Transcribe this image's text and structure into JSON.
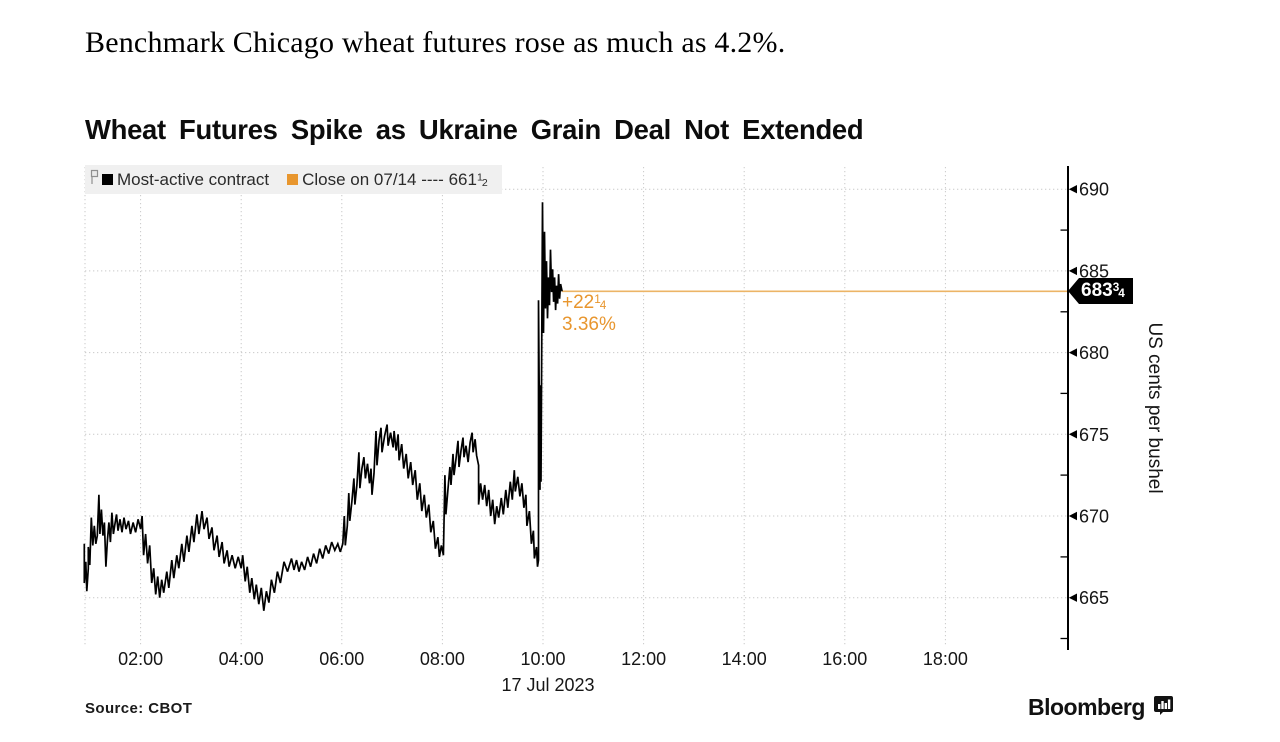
{
  "headline": "Benchmark Chicago wheat futures rose as much as 4.2%.",
  "chart": {
    "title": "Wheat Futures Spike as Ukraine Grain Deal Not Extended",
    "legend": {
      "series1": "Most-active contract",
      "close_prefix": "Close on 07/14 ----",
      "close_whole": "661",
      "close_num": "1",
      "close_den": "2"
    },
    "y_axis_title": "US cents per bushel",
    "source": "Source: CBOT",
    "brand": "Bloomberg"
  },
  "price_badge": {
    "whole": "683",
    "num": "3",
    "den": "4"
  },
  "annotation": {
    "change_whole": "+22",
    "change_num": "1",
    "change_den": "4",
    "pct": "3.36%"
  },
  "colors": {
    "accent": "#e8962e",
    "last_price_line": "#ecb466",
    "series": "#000000",
    "grid": "#c9c9c9",
    "legend_bg": "#f0f0f0",
    "badge_bg": "#000000",
    "badge_text": "#ffffff"
  },
  "chart_data": {
    "type": "line",
    "title": "Wheat Futures Spike as Ukraine Grain Deal Not Extended",
    "ylabel": "US cents per bushel",
    "x_date_label": "17 Jul 2023",
    "x_unit": "hour of day",
    "xlim": [
      0.8,
      20.4
    ],
    "ylim": [
      661.5,
      691.5
    ],
    "grid": true,
    "legend_position": "top-left",
    "y_ticks": [
      665,
      670,
      675,
      680,
      685,
      690
    ],
    "y_minor_ticks": [
      662.5,
      667.5,
      672.5,
      677.5,
      682.5,
      687.5
    ],
    "x_ticks": [
      {
        "t": 2,
        "label": "02:00"
      },
      {
        "t": 4,
        "label": "04:00"
      },
      {
        "t": 6,
        "label": "06:00"
      },
      {
        "t": 8,
        "label": "08:00"
      },
      {
        "t": 10,
        "label": "10:00"
      },
      {
        "t": 12,
        "label": "12:00"
      },
      {
        "t": 14,
        "label": "14:00"
      },
      {
        "t": 16,
        "label": "16:00"
      },
      {
        "t": 18,
        "label": "18:00"
      }
    ],
    "prev_close": 661.5,
    "last_price": 683.75,
    "change": "+22 1/4",
    "change_pct": "3.36%",
    "intraday_high": 689.25,
    "intraday_low": 664.25,
    "series": [
      {
        "name": "Most-active contract",
        "color": "#000000",
        "points": [
          [
            0.88,
            668.3
          ],
          [
            0.88,
            665.9
          ],
          [
            0.91,
            667.2
          ],
          [
            0.93,
            665.4
          ],
          [
            0.96,
            666.8
          ],
          [
            0.96,
            668.1
          ],
          [
            0.99,
            667.0
          ],
          [
            1.02,
            669.9
          ],
          [
            1.05,
            668.2
          ],
          [
            1.08,
            669.4
          ],
          [
            1.11,
            668.3
          ],
          [
            1.14,
            668.8
          ],
          [
            1.17,
            671.3
          ],
          [
            1.19,
            668.9
          ],
          [
            1.22,
            670.4
          ],
          [
            1.25,
            668.8
          ],
          [
            1.28,
            669.6
          ],
          [
            1.31,
            666.9
          ],
          [
            1.34,
            668.5
          ],
          [
            1.37,
            669.6
          ],
          [
            1.4,
            668.4
          ],
          [
            1.43,
            670.2
          ],
          [
            1.46,
            668.9
          ],
          [
            1.49,
            669.5
          ],
          [
            1.52,
            670.1
          ],
          [
            1.55,
            669.1
          ],
          [
            1.59,
            669.8
          ],
          [
            1.63,
            669.0
          ],
          [
            1.67,
            669.9
          ],
          [
            1.71,
            669.2
          ],
          [
            1.76,
            669.7
          ],
          [
            1.8,
            668.9
          ],
          [
            1.85,
            669.6
          ],
          [
            1.9,
            669.0
          ],
          [
            1.95,
            669.8
          ],
          [
            2.0,
            669.2
          ],
          [
            2.03,
            670.0
          ],
          [
            2.06,
            667.6
          ],
          [
            2.1,
            668.9
          ],
          [
            2.14,
            667.1
          ],
          [
            2.18,
            668.2
          ],
          [
            2.22,
            665.9
          ],
          [
            2.26,
            666.8
          ],
          [
            2.3,
            665.2
          ],
          [
            2.34,
            666.3
          ],
          [
            2.38,
            665.0
          ],
          [
            2.42,
            666.1
          ],
          [
            2.46,
            665.3
          ],
          [
            2.52,
            666.6
          ],
          [
            2.56,
            665.6
          ],
          [
            2.62,
            667.3
          ],
          [
            2.66,
            666.2
          ],
          [
            2.72,
            667.6
          ],
          [
            2.76,
            666.8
          ],
          [
            2.82,
            668.3
          ],
          [
            2.86,
            667.2
          ],
          [
            2.92,
            668.8
          ],
          [
            2.96,
            667.8
          ],
          [
            3.02,
            669.4
          ],
          [
            3.06,
            668.4
          ],
          [
            3.12,
            670.1
          ],
          [
            3.16,
            668.9
          ],
          [
            3.22,
            670.3
          ],
          [
            3.26,
            669.2
          ],
          [
            3.32,
            669.9
          ],
          [
            3.36,
            668.6
          ],
          [
            3.42,
            669.3
          ],
          [
            3.46,
            667.9
          ],
          [
            3.52,
            668.8
          ],
          [
            3.56,
            667.5
          ],
          [
            3.62,
            668.4
          ],
          [
            3.66,
            667.1
          ],
          [
            3.72,
            667.9
          ],
          [
            3.76,
            666.9
          ],
          [
            3.82,
            667.6
          ],
          [
            3.88,
            666.8
          ],
          [
            3.94,
            667.5
          ],
          [
            4.0,
            666.8
          ],
          [
            4.03,
            667.6
          ],
          [
            4.08,
            666.0
          ],
          [
            4.12,
            666.9
          ],
          [
            4.17,
            665.3
          ],
          [
            4.21,
            666.2
          ],
          [
            4.26,
            664.9
          ],
          [
            4.3,
            665.8
          ],
          [
            4.35,
            664.6
          ],
          [
            4.4,
            665.6
          ],
          [
            4.45,
            664.2
          ],
          [
            4.5,
            665.4
          ],
          [
            4.55,
            664.7
          ],
          [
            4.6,
            666.1
          ],
          [
            4.66,
            665.3
          ],
          [
            4.72,
            666.6
          ],
          [
            4.78,
            665.9
          ],
          [
            4.85,
            667.2
          ],
          [
            4.92,
            666.6
          ],
          [
            5.0,
            667.4
          ],
          [
            5.05,
            666.7
          ],
          [
            5.1,
            667.3
          ],
          [
            5.15,
            666.6
          ],
          [
            5.2,
            667.2
          ],
          [
            5.26,
            666.7
          ],
          [
            5.32,
            667.5
          ],
          [
            5.38,
            666.9
          ],
          [
            5.44,
            667.7
          ],
          [
            5.5,
            667.1
          ],
          [
            5.56,
            668.0
          ],
          [
            5.62,
            667.4
          ],
          [
            5.68,
            668.2
          ],
          [
            5.74,
            667.7
          ],
          [
            5.8,
            668.4
          ],
          [
            5.86,
            667.9
          ],
          [
            5.92,
            668.3
          ],
          [
            5.97,
            667.8
          ],
          [
            6.02,
            668.3
          ],
          [
            6.05,
            670.0
          ],
          [
            6.07,
            668.2
          ],
          [
            6.11,
            669.4
          ],
          [
            6.14,
            671.4
          ],
          [
            6.16,
            669.7
          ],
          [
            6.2,
            670.9
          ],
          [
            6.24,
            672.3
          ],
          [
            6.26,
            670.7
          ],
          [
            6.3,
            671.9
          ],
          [
            6.34,
            673.9
          ],
          [
            6.36,
            671.7
          ],
          [
            6.4,
            672.9
          ],
          [
            6.44,
            673.6
          ],
          [
            6.47,
            672.3
          ],
          [
            6.51,
            673.2
          ],
          [
            6.55,
            672.0
          ],
          [
            6.58,
            672.9
          ],
          [
            6.6,
            671.3
          ],
          [
            6.64,
            672.6
          ],
          [
            6.68,
            675.2
          ],
          [
            6.7,
            673.1
          ],
          [
            6.74,
            674.6
          ],
          [
            6.78,
            675.4
          ],
          [
            6.8,
            673.9
          ],
          [
            6.85,
            674.9
          ],
          [
            6.9,
            675.6
          ],
          [
            6.92,
            674.3
          ],
          [
            6.97,
            675.1
          ],
          [
            7.02,
            674.2
          ],
          [
            7.04,
            675.2
          ],
          [
            7.08,
            674.0
          ],
          [
            7.12,
            675.0
          ],
          [
            7.14,
            673.4
          ],
          [
            7.19,
            674.4
          ],
          [
            7.23,
            672.9
          ],
          [
            7.28,
            673.8
          ],
          [
            7.32,
            672.3
          ],
          [
            7.37,
            673.3
          ],
          [
            7.41,
            671.9
          ],
          [
            7.46,
            672.8
          ],
          [
            7.5,
            671.0
          ],
          [
            7.55,
            672.0
          ],
          [
            7.59,
            670.3
          ],
          [
            7.64,
            671.3
          ],
          [
            7.68,
            669.9
          ],
          [
            7.73,
            670.7
          ],
          [
            7.77,
            669.0
          ],
          [
            7.82,
            669.7
          ],
          [
            7.86,
            668.0
          ],
          [
            7.91,
            668.7
          ],
          [
            7.94,
            667.5
          ],
          [
            7.98,
            668.2
          ],
          [
            8.02,
            667.6
          ],
          [
            8.05,
            672.5
          ],
          [
            8.07,
            670.1
          ],
          [
            8.11,
            671.6
          ],
          [
            8.15,
            673.0
          ],
          [
            8.17,
            671.9
          ],
          [
            8.21,
            673.8
          ],
          [
            8.23,
            672.5
          ],
          [
            8.27,
            673.5
          ],
          [
            8.31,
            674.6
          ],
          [
            8.33,
            673.0
          ],
          [
            8.37,
            674.0
          ],
          [
            8.41,
            674.8
          ],
          [
            8.43,
            673.6
          ],
          [
            8.47,
            674.3
          ],
          [
            8.51,
            673.3
          ],
          [
            8.55,
            674.5
          ],
          [
            8.59,
            675.1
          ],
          [
            8.61,
            673.9
          ],
          [
            8.65,
            674.7
          ],
          [
            8.68,
            673.7
          ],
          [
            8.72,
            673.1
          ],
          [
            8.72,
            670.7
          ],
          [
            8.76,
            672.0
          ],
          [
            8.8,
            671.0
          ],
          [
            8.84,
            671.9
          ],
          [
            8.88,
            670.6
          ],
          [
            8.92,
            671.6
          ],
          [
            8.96,
            670.0
          ],
          [
            9.0,
            671.0
          ],
          [
            9.04,
            669.5
          ],
          [
            9.08,
            670.6
          ],
          [
            9.12,
            669.9
          ],
          [
            9.17,
            671.1
          ],
          [
            9.21,
            670.1
          ],
          [
            9.26,
            671.6
          ],
          [
            9.3,
            670.5
          ],
          [
            9.35,
            672.1
          ],
          [
            9.39,
            671.0
          ],
          [
            9.43,
            672.8
          ],
          [
            9.45,
            671.5
          ],
          [
            9.5,
            672.4
          ],
          [
            9.54,
            671.2
          ],
          [
            9.58,
            672.0
          ],
          [
            9.62,
            670.5
          ],
          [
            9.66,
            671.3
          ],
          [
            9.68,
            669.4
          ],
          [
            9.73,
            670.3
          ],
          [
            9.77,
            668.3
          ],
          [
            9.81,
            669.1
          ],
          [
            9.83,
            667.4
          ],
          [
            9.87,
            668.1
          ],
          [
            9.89,
            666.9
          ],
          [
            9.91,
            667.3
          ],
          [
            9.91,
            683.2
          ],
          [
            9.94,
            671.6
          ],
          [
            9.94,
            678.0
          ],
          [
            9.96,
            672.1
          ],
          [
            9.99,
            689.2
          ],
          [
            10.01,
            681.2
          ],
          [
            10.03,
            687.4
          ],
          [
            10.05,
            682.7
          ],
          [
            10.07,
            685.6
          ],
          [
            10.09,
            682.1
          ],
          [
            10.11,
            684.6
          ],
          [
            10.13,
            682.9
          ],
          [
            10.15,
            686.3
          ],
          [
            10.17,
            683.7
          ],
          [
            10.19,
            685.1
          ],
          [
            10.21,
            683.1
          ],
          [
            10.23,
            684.6
          ],
          [
            10.25,
            682.6
          ],
          [
            10.27,
            684.1
          ],
          [
            10.29,
            683.0
          ],
          [
            10.31,
            684.8
          ],
          [
            10.33,
            683.3
          ],
          [
            10.35,
            684.2
          ],
          [
            10.38,
            683.75
          ]
        ]
      }
    ]
  }
}
